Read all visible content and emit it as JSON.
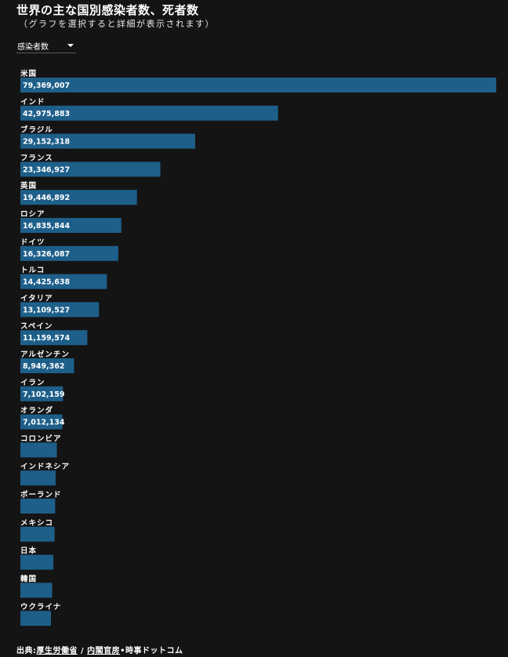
{
  "header": {
    "title": "世界の主な国別感染者数、死者数",
    "subtitle": "（グラフを選択すると詳細が表示されます）"
  },
  "selector": {
    "selected": "感染者数"
  },
  "footer": {
    "prefix": "出典:",
    "link1": "厚生労働省",
    "sep": " / ",
    "link2": "内閣官房",
    "suffix": "•時事ドットコム"
  },
  "colors": {
    "bar": "#1e5f8a",
    "background": "#141414",
    "text": "#ffffff"
  },
  "chart_data": {
    "type": "bar",
    "orientation": "horizontal",
    "categories": [
      "米国",
      "インド",
      "ブラジル",
      "フランス",
      "英国",
      "ロシア",
      "ドイツ",
      "トルコ",
      "イタリア",
      "スペイン",
      "アルゼンチン",
      "イラン",
      "オランダ",
      "コロンビア",
      "インドネシア",
      "ポーランド",
      "メキシコ",
      "日本",
      "韓国",
      "ウクライナ"
    ],
    "values": [
      79369007,
      42975883,
      29152318,
      23346927,
      19446892,
      16835844,
      16326087,
      14425638,
      13109527,
      11159574,
      8949362,
      7102159,
      7012134,
      6080000,
      5880000,
      5800000,
      5700000,
      5500000,
      5300000,
      5100000
    ],
    "value_labels": [
      "79,369,007",
      "42,975,883",
      "29,152,318",
      "23,346,927",
      "19,446,892",
      "16,835,844",
      "16,326,087",
      "14,425,638",
      "13,109,527",
      "11,159,574",
      "8,949,362",
      "7,102,159",
      "7,012,134",
      "",
      "",
      "",
      "",
      "",
      "",
      ""
    ],
    "xlim": [
      0,
      79369007
    ]
  }
}
